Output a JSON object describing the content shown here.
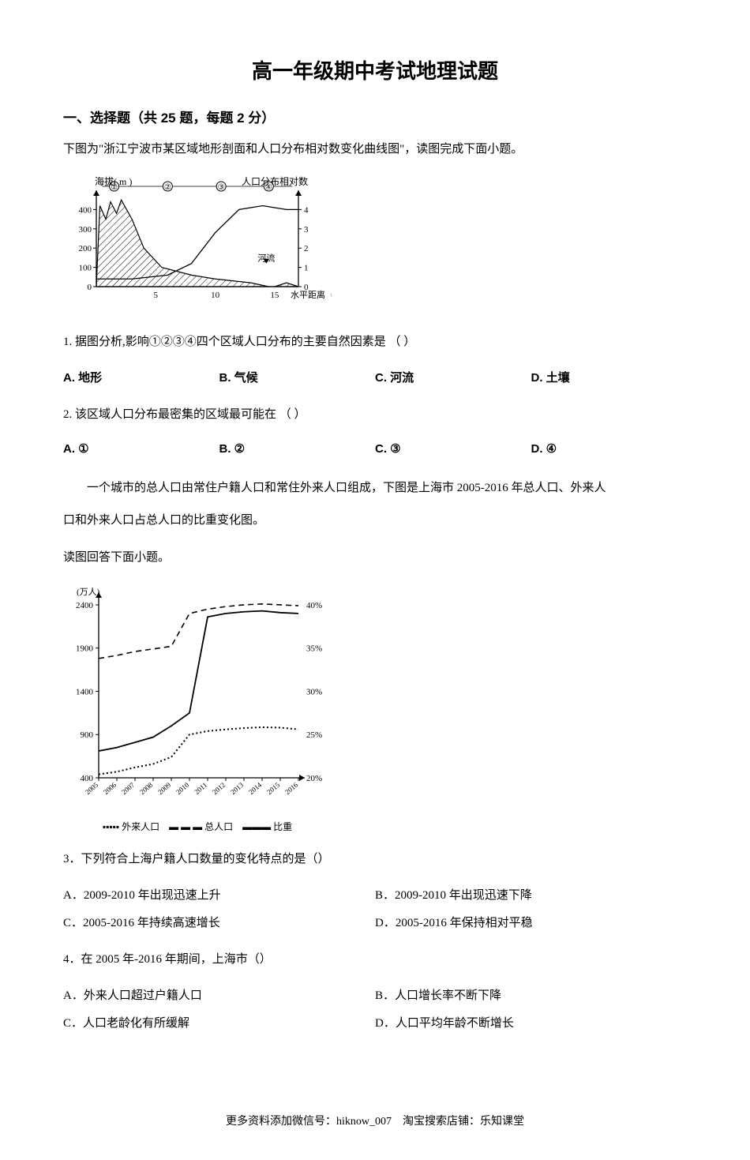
{
  "title": "高一年级期中考试地理试题",
  "section_header": "一、选择题（共 25 题，每题 2 分）",
  "intro1": "下图为\"浙江宁波市某区域地形剖面和人口分布相对数变化曲线图\"，读图完成下面小题。",
  "chart1": {
    "left_axis_label": "海拔( m )",
    "right_axis_label": "人口分布相对数",
    "x_axis_label": "水平距离（km）",
    "river_label": "河流",
    "regions": [
      "①",
      "②",
      "③",
      "④"
    ],
    "left_ticks": [
      0,
      100,
      200,
      300,
      400
    ],
    "right_ticks": [
      0,
      1,
      2,
      3,
      4
    ],
    "x_ticks": [
      5,
      10,
      15
    ],
    "terrain_points": [
      [
        0,
        0
      ],
      [
        0.3,
        420
      ],
      [
        0.8,
        350
      ],
      [
        1.2,
        440
      ],
      [
        1.7,
        380
      ],
      [
        2.1,
        450
      ],
      [
        3,
        350
      ],
      [
        4,
        200
      ],
      [
        5.5,
        100
      ],
      [
        8,
        60
      ],
      [
        10,
        40
      ],
      [
        13,
        20
      ],
      [
        14.5,
        0
      ],
      [
        15,
        0
      ],
      [
        16,
        20
      ],
      [
        17,
        0
      ]
    ],
    "population_points": [
      [
        0,
        0.4
      ],
      [
        3,
        0.4
      ],
      [
        6,
        0.6
      ],
      [
        8,
        1.2
      ],
      [
        10,
        2.8
      ],
      [
        12,
        4.0
      ],
      [
        14,
        4.2
      ],
      [
        15,
        4.1
      ],
      [
        16,
        4.0
      ],
      [
        17,
        4.0
      ]
    ],
    "terrain_fill": "hatched",
    "line_color": "#000000",
    "bg_color": "#ffffff"
  },
  "q1": {
    "text": "1. 据图分析,影响①②③④四个区域人口分布的主要自然因素是     （      ）",
    "opts": {
      "A": "A. 地形",
      "B": "B. 气候",
      "C": "C. 河流",
      "D": "D. 土壤"
    }
  },
  "q2": {
    "text": "2. 该区域人口分布最密集的区域最可能在     （      ）",
    "opts": {
      "A": "A. ①",
      "B": "B. ②",
      "C": "C. ③",
      "D": "D. ④"
    }
  },
  "passage2_line1": "一个城市的总人口由常住户籍人口和常住外来人口组成，下图是上海市 2005-2016 年总人口、外来人",
  "passage2_line2": "口和外来人口占总人口的比重变化图。",
  "passage2_line3": "读图回答下面小题。",
  "chart2": {
    "y_left_label": "(万人)",
    "y_left_ticks": [
      400,
      900,
      1400,
      1900,
      2400
    ],
    "y_right_ticks": [
      "20%",
      "25%",
      "30%",
      "35%",
      "40%"
    ],
    "x_years": [
      2005,
      2006,
      2007,
      2008,
      2009,
      2010,
      2011,
      2012,
      2013,
      2014,
      2015,
      2016
    ],
    "legend": {
      "series1": "外来人口",
      "series2": "总人口",
      "series3": "比重"
    },
    "series_total": [
      1780,
      1815,
      1860,
      1890,
      1920,
      2300,
      2350,
      2380,
      2400,
      2410,
      2400,
      2390
    ],
    "series_foreign": [
      440,
      470,
      520,
      560,
      640,
      900,
      940,
      960,
      975,
      985,
      980,
      960
    ],
    "series_ratio": [
      710,
      750,
      810,
      870,
      1000,
      1150,
      2260,
      2300,
      2320,
      2330,
      2310,
      2300
    ],
    "line_color": "#000000",
    "bg_color": "#ffffff",
    "tick_fontsize": 10
  },
  "q3": {
    "text": "3．下列符合上海户籍人口数量的变化特点的是（）",
    "opts": {
      "A": "A．2009-2010 年出现迅速上升",
      "B": "B．2009-2010 年出现迅速下降",
      "C": "C．2005-2016 年持续高速增长",
      "D": "D．2005-2016 年保持相对平稳"
    }
  },
  "q4": {
    "text": "4．在 2005 年-2016 年期间，上海市（）",
    "opts": {
      "A": "A．外来人口超过户籍人口",
      "B": "B．人口增长率不断下降",
      "C": "C．人口老龄化有所缓解",
      "D": "D．人口平均年龄不断增长"
    }
  },
  "footer": "更多资料添加微信号：hiknow_007　淘宝搜索店铺：乐知课堂"
}
